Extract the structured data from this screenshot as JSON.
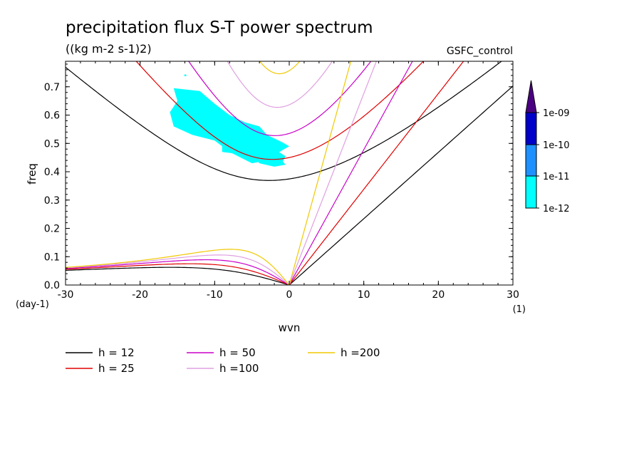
{
  "chart_data": {
    "type": "contour",
    "title": "precipitation flux S-T power spectrum",
    "subtitle": "((kg m-2 s-1)2)",
    "experiment": "GSFC_control",
    "xlabel": "wvn",
    "ylabel": "freq",
    "x_unit": "(1)",
    "y_unit": "(day-1)",
    "xlim": [
      -30,
      30
    ],
    "ylim": [
      0,
      0.79
    ],
    "x_ticks": [
      "-30",
      "-20",
      "-10",
      "0",
      "10",
      "20",
      "30"
    ],
    "x_tick_values": [
      -30,
      -20,
      -10,
      0,
      10,
      20,
      30
    ],
    "y_ticks": [
      "0.0",
      "0.1",
      "0.2",
      "0.3",
      "0.4",
      "0.5",
      "0.6",
      "0.7"
    ],
    "y_tick_values": [
      0,
      0.1,
      0.2,
      0.3,
      0.4,
      0.5,
      0.6,
      0.7
    ],
    "colorbar": {
      "labels": [
        "1e-12",
        "1e-11",
        "1e-10",
        "1e-09"
      ],
      "colors": [
        "#00ffff",
        "#1e90ff",
        "#0000c8",
        "#4b0082"
      ]
    },
    "dispersion_curves": [
      {
        "name": "h = 12",
        "h": 12,
        "color": "#000000"
      },
      {
        "name": "h = 25",
        "h": 25,
        "color": "#e00000"
      },
      {
        "name": "h = 50",
        "h": 50,
        "color": "#c800c8"
      },
      {
        "name": "h =100",
        "h": 100,
        "color": "#e0a0e0"
      },
      {
        "name": "h =200",
        "h": 200,
        "color": "#f0c800"
      }
    ],
    "shaded_region": {
      "level": "1e-12",
      "color": "#00ffff",
      "approx_extent": {
        "wvn": [
          -16,
          0
        ],
        "freq": [
          0.42,
          0.69
        ]
      }
    }
  }
}
